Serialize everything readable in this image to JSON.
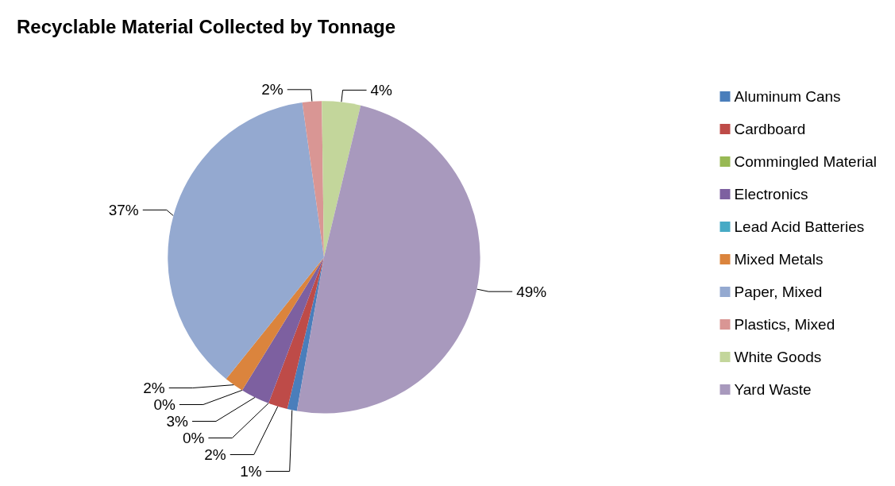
{
  "chart_data": {
    "type": "pie",
    "title": "Recyclable Material Collected by Tonnage",
    "categories": [
      "Aluminum Cans",
      "Cardboard",
      "Commingled Material",
      "Electronics",
      "Lead Acid Batteries",
      "Mixed Metals",
      "Paper, Mixed",
      "Plastics, Mixed",
      "White Goods",
      "Yard Waste"
    ],
    "values": [
      1,
      2,
      0,
      3,
      0,
      2,
      37,
      2,
      4,
      49
    ],
    "value_labels": [
      "1%",
      "2%",
      "0%",
      "3%",
      "0%",
      "2%",
      "37%",
      "2%",
      "4%",
      "49%"
    ],
    "colors": [
      "#4a7ebb",
      "#be4b48",
      "#98b954",
      "#7d60a0",
      "#46aac5",
      "#db843d",
      "#94a9d0",
      "#d99694",
      "#c3d69b",
      "#a899bd"
    ],
    "legend": "right"
  }
}
